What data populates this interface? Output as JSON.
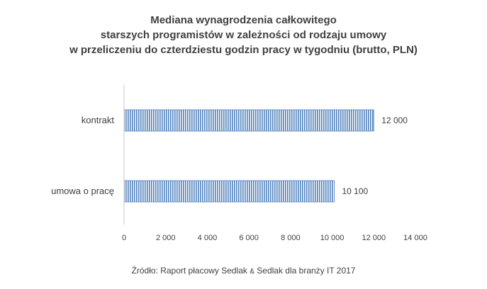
{
  "chart_data": {
    "type": "bar",
    "orientation": "horizontal",
    "title_lines": [
      "Mediana wynagrodzenia całkowitego",
      "starszych programistów w zależności od rodzaju umowy",
      "w przeliczeniu do czterdziestu godzin pracy w tygodniu (brutto, PLN)"
    ],
    "categories": [
      "kontrakt",
      "umowa o pracę"
    ],
    "values": [
      12000,
      10100
    ],
    "value_labels": [
      "12 000",
      "10 100"
    ],
    "xlim": [
      0,
      14000
    ],
    "x_ticks": [
      0,
      2000,
      4000,
      6000,
      8000,
      10000,
      12000,
      14000
    ],
    "x_tick_labels": [
      "0",
      "2 000",
      "4 000",
      "6 000",
      "8 000",
      "10 000",
      "12 000",
      "14 000"
    ],
    "grid": false,
    "legend": "none",
    "bar_color": "#4f81bd",
    "bar_fill": "vertical-hatch"
  },
  "source": {
    "prefix": "Źródło: Raport płacowy Sedlak ",
    "amp": "&",
    "suffix": " Sedlak dla branży IT 2017"
  }
}
